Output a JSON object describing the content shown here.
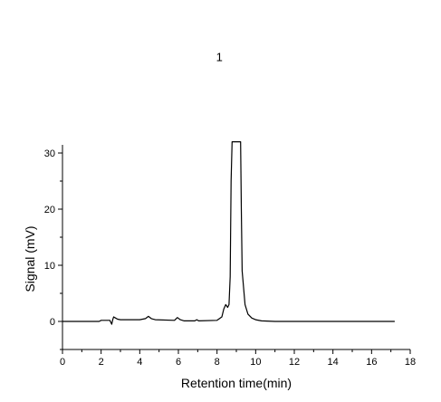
{
  "chart_data": {
    "type": "line",
    "title": "",
    "xlabel": "Retention time(min)",
    "ylabel": "Signal (mV)",
    "xlim": [
      0,
      18
    ],
    "ylim": [
      -5,
      32
    ],
    "x_ticks": [
      0,
      2,
      4,
      6,
      8,
      10,
      12,
      14,
      16,
      18
    ],
    "y_ticks": [
      0,
      10,
      20,
      30
    ],
    "grid": false,
    "legend": "none",
    "line_color": "#000000",
    "annotations": [
      {
        "text": "1",
        "x": 8.4,
        "y": 47.0
      }
    ],
    "series": [
      {
        "x": [
          0.0,
          1.9,
          2.0,
          2.45,
          2.55,
          2.6,
          2.65,
          2.75,
          2.85,
          3.0,
          4.0,
          4.3,
          4.45,
          4.6,
          4.8,
          5.8,
          5.95,
          6.1,
          6.3,
          6.85,
          6.95,
          7.05,
          8.0,
          8.25,
          8.35,
          8.45,
          8.55,
          8.62,
          8.68,
          8.73,
          8.78,
          8.82,
          9.22,
          9.26,
          9.3,
          9.45,
          9.6,
          9.8,
          10.0,
          10.3,
          11.0,
          13.0,
          15.0,
          17.2
        ],
        "y": [
          0.0,
          0.0,
          0.2,
          0.2,
          -0.5,
          0.3,
          0.8,
          0.6,
          0.4,
          0.3,
          0.3,
          0.5,
          0.9,
          0.5,
          0.3,
          0.2,
          0.7,
          0.3,
          0.1,
          0.1,
          0.3,
          0.1,
          0.2,
          0.8,
          2.2,
          3.0,
          2.5,
          3.0,
          8.0,
          25.0,
          32.0,
          32.0,
          32.0,
          20.0,
          9.0,
          3.0,
          1.3,
          0.6,
          0.3,
          0.1,
          0.0,
          0.0,
          0.0,
          0.0
        ]
      }
    ]
  }
}
